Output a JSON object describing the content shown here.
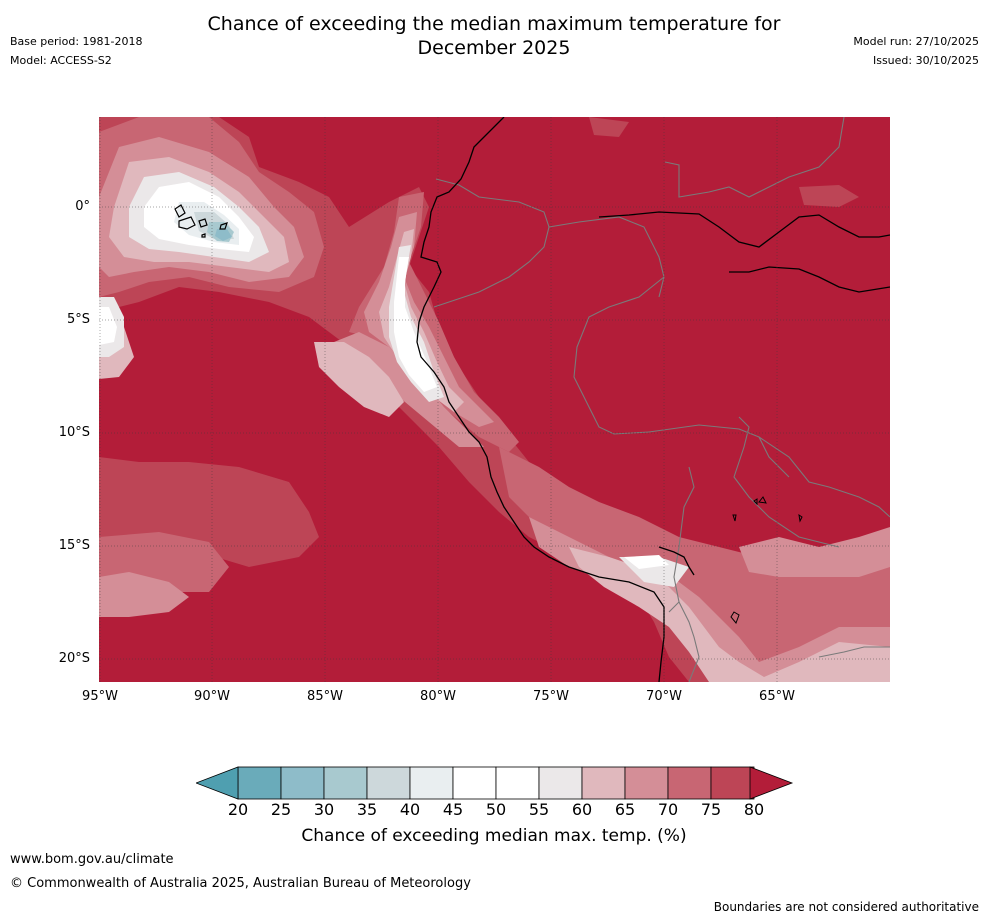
{
  "title": {
    "line1": "Chance of exceeding the median maximum temperature for",
    "line2": "December 2025"
  },
  "meta_left": {
    "base_period": "Base period: 1981-2018",
    "model": "Model: ACCESS-S2"
  },
  "meta_right": {
    "model_run": "Model run: 27/10/2025",
    "issued": "Issued: 30/10/2025"
  },
  "map": {
    "lat_labels": [
      "0°",
      "5°S",
      "10°S",
      "15°S",
      "20°S"
    ],
    "lon_labels": [
      "95°W",
      "90°W",
      "85°W",
      "80°W",
      "75°W",
      "70°W",
      "65°W"
    ],
    "extent": {
      "lon_min": -95,
      "lon_max": -60,
      "lat_min": -21,
      "lat_max": 4
    },
    "background_color": "#b31d39"
  },
  "colorbar": {
    "ticks": [
      "20",
      "25",
      "30",
      "35",
      "40",
      "45",
      "50",
      "55",
      "60",
      "65",
      "70",
      "75",
      "80"
    ],
    "colors": [
      "#6aabba",
      "#8ebcc9",
      "#a8c9cf",
      "#cdd8db",
      "#e9eef0",
      "#ffffff",
      "#ffffff",
      "#ebe8e9",
      "#e0b8bd",
      "#d48e97",
      "#c86673",
      "#bd4556"
    ],
    "under_color": "#4f9fb0",
    "over_color": "#b31d39",
    "label": "Chance of exceeding median max. temp. (%)"
  },
  "footer": {
    "url": "www.bom.gov.au/climate",
    "copyright": "© Commonwealth of Australia 2025, Australian Bureau of Meteorology",
    "note": "Boundaries are not considered authoritative"
  }
}
